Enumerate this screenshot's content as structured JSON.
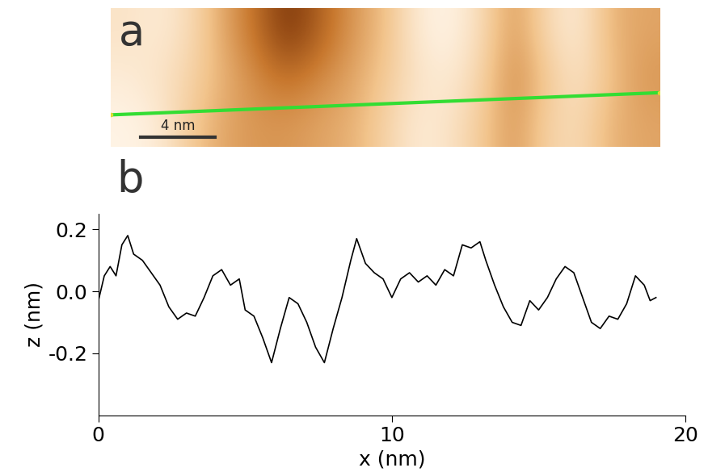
{
  "chart_data": [
    {
      "type": "image",
      "title": "a",
      "tick_labels": false,
      "annotations": [
        "4 nm"
      ],
      "cells": [
        [
          0.85,
          0.9,
          0.8,
          0.55,
          0.35,
          0.1,
          0.3,
          0.5,
          0.65,
          0.9,
          0.95,
          0.8,
          0.5,
          0.8,
          0.9,
          0.6,
          0.55
        ],
        [
          0.9,
          0.85,
          0.75,
          0.6,
          0.45,
          0.35,
          0.45,
          0.55,
          0.7,
          0.85,
          0.9,
          0.75,
          0.45,
          0.7,
          0.85,
          0.65,
          0.5
        ],
        [
          0.95,
          0.9,
          0.7,
          0.55,
          0.5,
          0.5,
          0.55,
          0.6,
          0.75,
          0.9,
          0.85,
          0.7,
          0.5,
          0.75,
          0.8,
          0.6,
          0.55
        ]
      ]
    },
    {
      "type": "line",
      "title": "b",
      "x_label": "x (nm)",
      "y_label": "z (nm)",
      "color": "#000000",
      "x": [
        0,
        0.2,
        0.4,
        0.6,
        0.8,
        1.0,
        1.2,
        1.5,
        1.8,
        2.1,
        2.4,
        2.7,
        3.0,
        3.3,
        3.6,
        3.9,
        4.2,
        4.5,
        4.8,
        5.0,
        5.3,
        5.6,
        5.9,
        6.2,
        6.5,
        6.8,
        7.1,
        7.4,
        7.7,
        8.0,
        8.3,
        8.6,
        8.8,
        9.1,
        9.4,
        9.7,
        10.0,
        10.3,
        10.6,
        10.9,
        11.2,
        11.5,
        11.8,
        12.1,
        12.4,
        12.7,
        13.0,
        13.2,
        13.5,
        13.8,
        14.1,
        14.4,
        14.7,
        15.0,
        15.3,
        15.6,
        15.9,
        16.2,
        16.5,
        16.8,
        17.1,
        17.4,
        17.7,
        18.0,
        18.3,
        18.6,
        18.8,
        19.0
      ],
      "values": [
        -0.03,
        0.05,
        0.08,
        0.05,
        0.15,
        0.18,
        0.12,
        0.1,
        0.06,
        0.02,
        -0.05,
        -0.09,
        -0.07,
        -0.08,
        -0.02,
        0.05,
        0.07,
        0.02,
        0.04,
        -0.06,
        -0.08,
        -0.15,
        -0.23,
        -0.12,
        -0.02,
        -0.04,
        -0.1,
        -0.18,
        -0.23,
        -0.12,
        -0.02,
        0.1,
        0.17,
        0.09,
        0.06,
        0.04,
        -0.02,
        0.04,
        0.06,
        0.03,
        0.05,
        0.02,
        0.07,
        0.05,
        0.15,
        0.14,
        0.16,
        0.1,
        0.02,
        -0.05,
        -0.1,
        -0.11,
        -0.03,
        -0.06,
        -0.02,
        0.04,
        0.08,
        0.06,
        -0.02,
        -0.1,
        -0.12,
        -0.08,
        -0.09,
        -0.04,
        0.05,
        0.02,
        -0.03,
        -0.02
      ],
      "xlim": [
        0,
        20
      ],
      "xticks": [
        0,
        10,
        20
      ],
      "ylim": [
        -0.4,
        0.25
      ],
      "yticks": [
        {
          "value": 0.2,
          "label": "0.2"
        },
        {
          "value": 0.0,
          "label": "0.0"
        },
        {
          "value": -0.2,
          "label": "-0.2"
        }
      ]
    }
  ]
}
